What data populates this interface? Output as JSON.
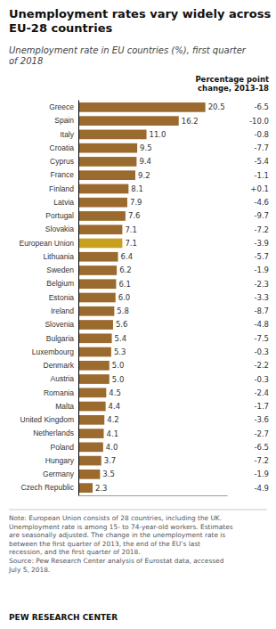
{
  "chart_data": {
    "type": "bar",
    "orientation": "horizontal",
    "title": "Unemployment rates vary widely across\nEU-28 countries",
    "subtitle": "Unemployment rate in EU countries (%), first quarter\nof 2018",
    "change_header": "Percentage point\nchange, 2013-18",
    "note": "Note: European Union consists of 28 countries, including the UK.\nUnemployment rate is among 15- to 74-year-old workers. Estimates\nare seasonally adjusted. The change in the unemployment rate is\nbetween the first quarter of 2013, the end of the EU’s last\nrecession, and the first quarter of 2018.\nSource: Pew Research Center analysis of Eurostat data, accessed\nJuly 5, 2018.",
    "source": "PEW RESEARCH CENTER",
    "categories": [
      "Greece",
      "Spain",
      "Italy",
      "Croatia",
      "Cyprus",
      "France",
      "Finland",
      "Latvia",
      "Portugal",
      "Slovakia",
      "European Union",
      "Lithuania",
      "Sweden",
      "Belgium",
      "Estonia",
      "Ireland",
      "Slovenia",
      "Bulgaria",
      "Luxembourg",
      "Denmark",
      "Austria",
      "Romania",
      "Malta",
      "United Kingdom",
      "Netherlands",
      "Poland",
      "Hungary",
      "Germany",
      "Czech Republic"
    ],
    "values": [
      20.5,
      16.2,
      11.0,
      9.5,
      9.4,
      9.2,
      8.1,
      7.9,
      7.6,
      7.1,
      7.1,
      6.4,
      6.2,
      6.1,
      6.0,
      5.8,
      5.6,
      5.4,
      5.3,
      5.0,
      5.0,
      4.5,
      4.4,
      4.2,
      4.1,
      4.0,
      3.7,
      3.5,
      2.3
    ],
    "value_labels": [
      "20.5",
      "16.2",
      "11.0",
      "9.5",
      "9.4",
      "9.2",
      "8.1",
      "7.9",
      "7.6",
      "7.1",
      "7.1",
      "6.4",
      "6.2",
      "6.1",
      "6.0",
      "5.8",
      "5.6",
      "5.4",
      "5.3",
      "5.0",
      "5.0",
      "4.5",
      "4.4",
      "4.2",
      "4.1",
      "4.0",
      "3.7",
      "3.5",
      "2.3"
    ],
    "changes": [
      "-6.5",
      "-10.0",
      "-0.8",
      "-7.7",
      "-5.4",
      "-1.1",
      "+0.1",
      "-4.6",
      "-9.7",
      "-7.2",
      "-3.9",
      "-5.7",
      "-1.9",
      "-2.3",
      "-3.3",
      "-8.7",
      "-4.8",
      "-7.5",
      "-0.3",
      "-2.2",
      "-0.3",
      "-2.4",
      "-1.7",
      "-3.6",
      "-2.7",
      "-6.5",
      "-7.2",
      "-1.9",
      "-4.9"
    ],
    "colors": [
      "#9B6A2E",
      "#9B6A2E",
      "#9B6A2E",
      "#9B6A2E",
      "#9B6A2E",
      "#9B6A2E",
      "#9B6A2E",
      "#9B6A2E",
      "#9B6A2E",
      "#9B6A2E",
      "#C8A020",
      "#9B6A2E",
      "#9B6A2E",
      "#9B6A2E",
      "#9B6A2E",
      "#9B6A2E",
      "#9B6A2E",
      "#9B6A2E",
      "#9B6A2E",
      "#9B6A2E",
      "#9B6A2E",
      "#9B6A2E",
      "#9B6A2E",
      "#9B6A2E",
      "#9B6A2E",
      "#9B6A2E",
      "#9B6A2E",
      "#9B6A2E",
      "#9B6A2E"
    ],
    "xlim": [
      0,
      24
    ],
    "data_labels": true,
    "tick_labels": "y",
    "grid": false
  }
}
